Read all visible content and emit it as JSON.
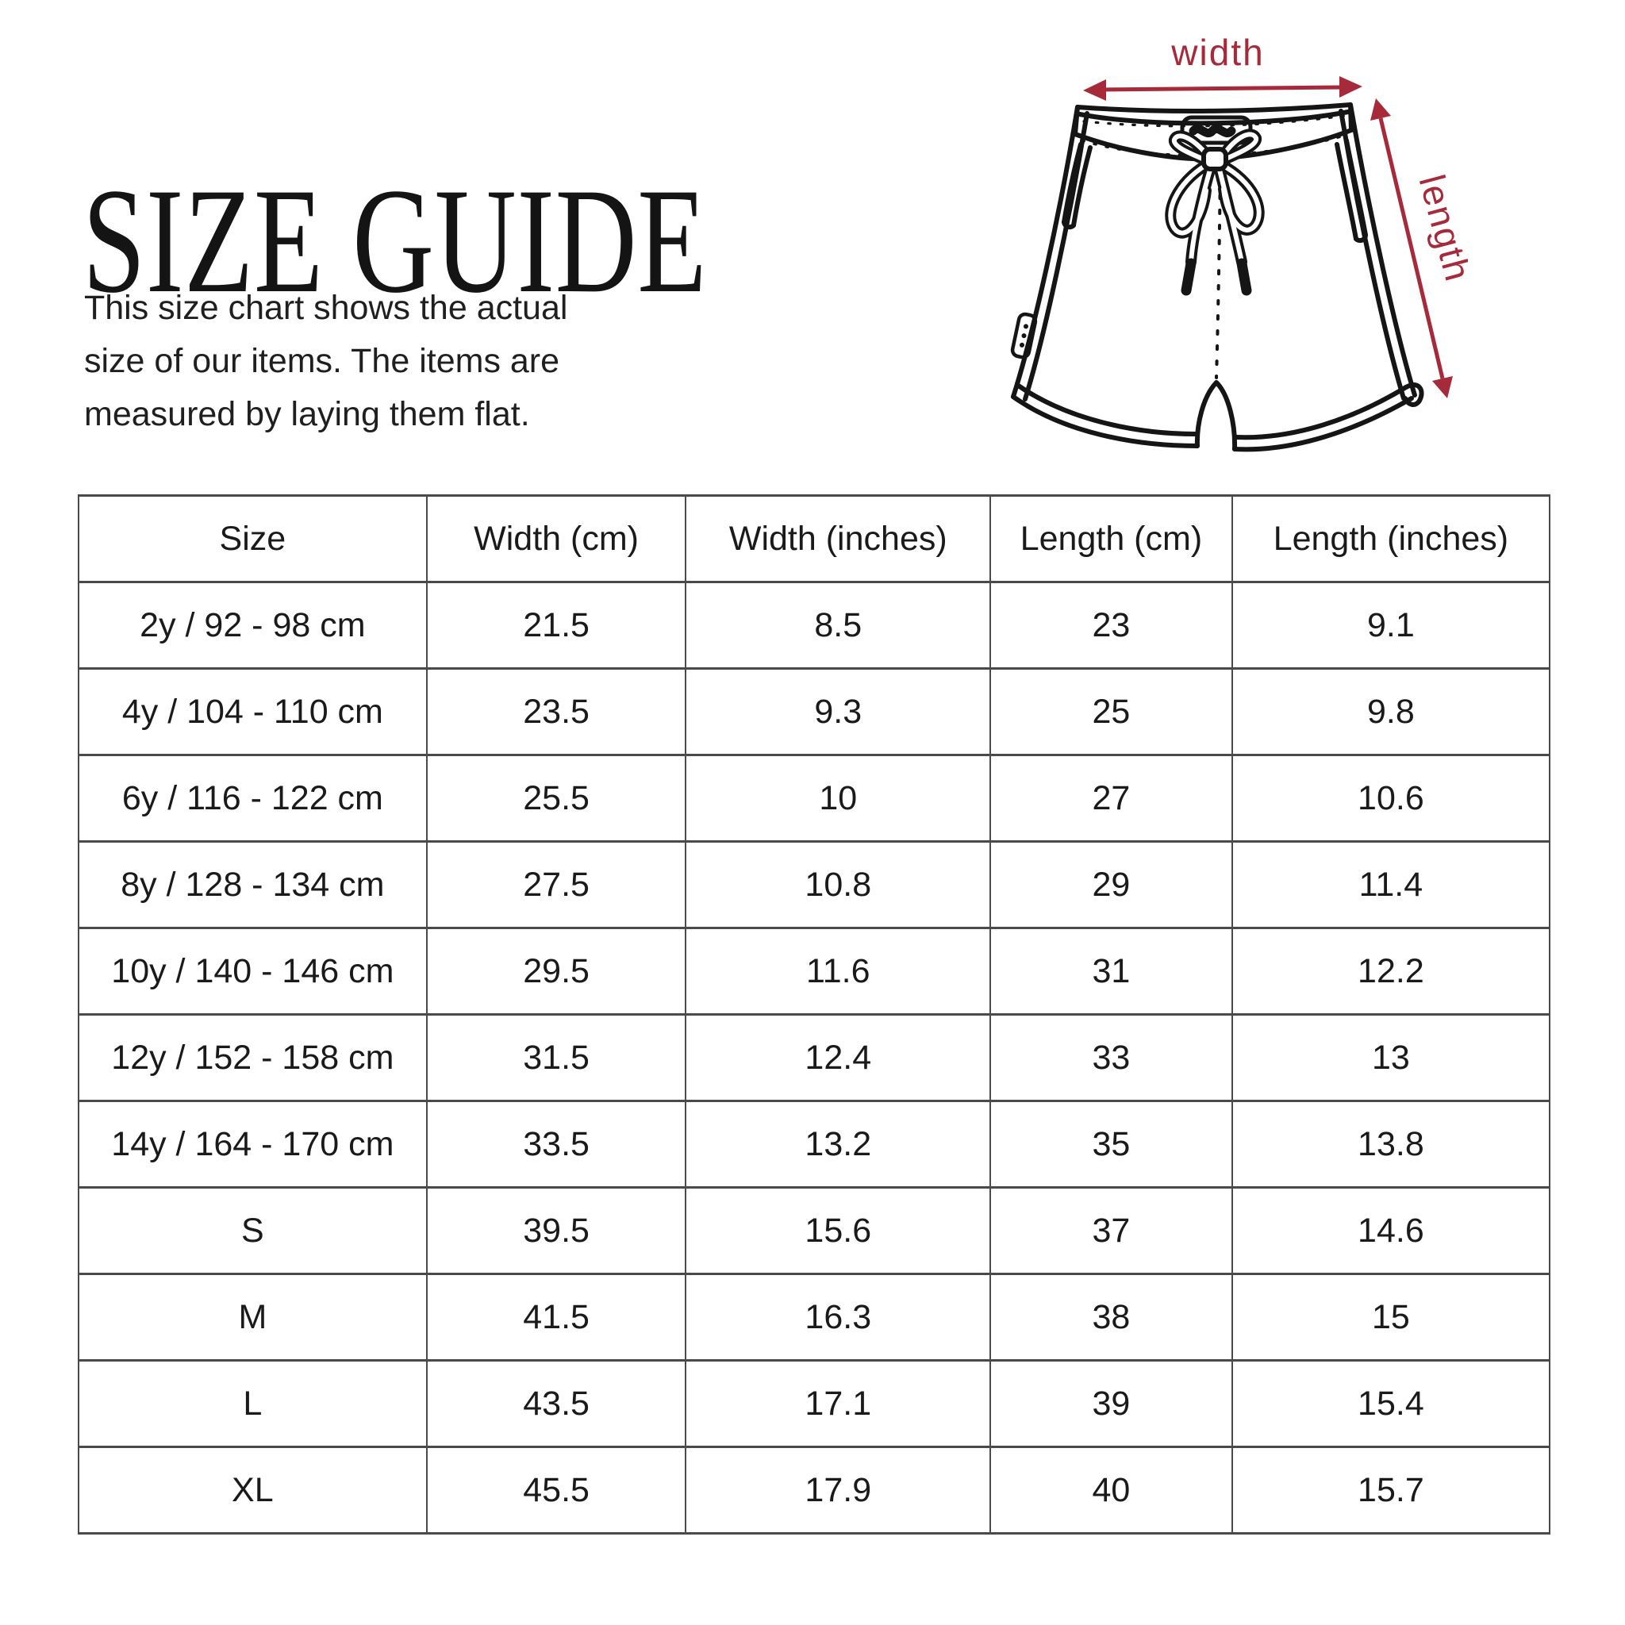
{
  "page": {
    "title": "SIZE GUIDE",
    "description": "This size chart shows the actual size of our items. The items are measured by laying them flat.",
    "accent_color": "#a62a3a",
    "line_color": "#151515",
    "border_color": "#4a4a4a"
  },
  "diagram": {
    "illustration": "shorts-line-drawing",
    "width_label": "width",
    "length_label": "length"
  },
  "table": {
    "headers": [
      "Size",
      "Width (cm)",
      "Width (inches)",
      "Length (cm)",
      "Length (inches)"
    ],
    "rows": [
      [
        "2y / 92 - 98 cm",
        "21.5",
        "8.5",
        "23",
        "9.1"
      ],
      [
        "4y / 104 - 110 cm",
        "23.5",
        "9.3",
        "25",
        "9.8"
      ],
      [
        "6y / 116 - 122 cm",
        "25.5",
        "10",
        "27",
        "10.6"
      ],
      [
        "8y / 128 - 134 cm",
        "27.5",
        "10.8",
        "29",
        "11.4"
      ],
      [
        "10y / 140 - 146 cm",
        "29.5",
        "11.6",
        "31",
        "12.2"
      ],
      [
        "12y / 152 - 158 cm",
        "31.5",
        "12.4",
        "33",
        "13"
      ],
      [
        "14y / 164 - 170 cm",
        "33.5",
        "13.2",
        "35",
        "13.8"
      ],
      [
        "S",
        "39.5",
        "15.6",
        "37",
        "14.6"
      ],
      [
        "M",
        "41.5",
        "16.3",
        "38",
        "15"
      ],
      [
        "L",
        "43.5",
        "17.1",
        "39",
        "15.4"
      ],
      [
        "XL",
        "45.5",
        "17.9",
        "40",
        "15.7"
      ]
    ]
  }
}
